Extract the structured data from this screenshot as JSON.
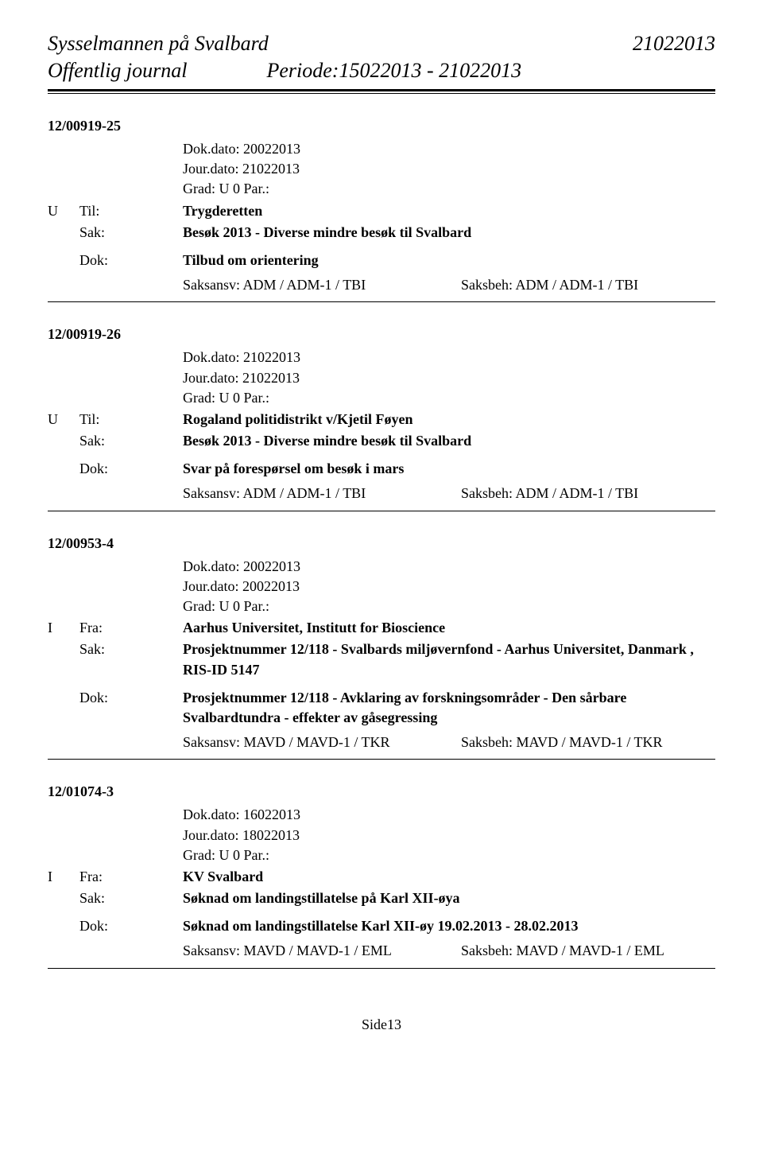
{
  "header": {
    "org": "Sysselmannen på Svalbard",
    "date": "21022013",
    "journal_label": "Offentlig journal",
    "period_label": "Periode:15022013 - 21022013"
  },
  "entries": [
    {
      "case_id": "12/00919-25",
      "dok_dato": "Dok.dato: 20022013",
      "jour_dato": "Jour.dato: 21022013",
      "grad": "Grad:  U 0    Par.:",
      "direction": "U",
      "party_label": "Til:",
      "party_value": "Trygderetten",
      "sak_label": "Sak:",
      "sak_value": "Besøk 2013 - Diverse mindre besøk til Svalbard",
      "dok_label": "Dok:",
      "dok_value": "Tilbud om orientering",
      "saksansv": "Saksansv:  ADM / ADM-1 / TBI",
      "saksbeh": "Saksbeh: ADM / ADM-1 / TBI"
    },
    {
      "case_id": "12/00919-26",
      "dok_dato": "Dok.dato: 21022013",
      "jour_dato": "Jour.dato: 21022013",
      "grad": "Grad:  U 0    Par.:",
      "direction": "U",
      "party_label": "Til:",
      "party_value": "Rogaland politidistrikt v/Kjetil Føyen",
      "sak_label": "Sak:",
      "sak_value": "Besøk 2013 - Diverse mindre besøk til Svalbard",
      "dok_label": "Dok:",
      "dok_value": "Svar på forespørsel om besøk i mars",
      "saksansv": "Saksansv:  ADM / ADM-1 / TBI",
      "saksbeh": "Saksbeh: ADM / ADM-1 / TBI"
    },
    {
      "case_id": "12/00953-4",
      "dok_dato": "Dok.dato: 20022013",
      "jour_dato": "Jour.dato: 20022013",
      "grad": "Grad:  U 0    Par.:",
      "direction": "I",
      "party_label": "Fra:",
      "party_value": "Aarhus Universitet, Institutt for Bioscience",
      "sak_label": "Sak:",
      "sak_value": "Prosjektnummer 12/118 - Svalbards miljøvernfond - Aarhus Universitet, Danmark , RIS-ID 5147",
      "dok_label": "Dok:",
      "dok_value": "Prosjektnummer 12/118 - Avklaring av forskningsområder -  Den sårbare Svalbardtundra - effekter av gåsegressing",
      "saksansv": "Saksansv:  MAVD / MAVD-1 / TKR",
      "saksbeh": "Saksbeh: MAVD / MAVD-1 / TKR"
    },
    {
      "case_id": "12/01074-3",
      "dok_dato": "Dok.dato: 16022013",
      "jour_dato": "Jour.dato: 18022013",
      "grad": "Grad:  U 0    Par.:",
      "direction": "I",
      "party_label": "Fra:",
      "party_value": "KV Svalbard",
      "sak_label": "Sak:",
      "sak_value": "Søknad om landingstillatelse på Karl XII-øya",
      "dok_label": "Dok:",
      "dok_value": "Søknad om landingstillatelse Karl XII-øy 19.02.2013 - 28.02.2013",
      "saksansv": "Saksansv:  MAVD / MAVD-1 / EML",
      "saksbeh": "Saksbeh: MAVD / MAVD-1 / EML"
    }
  ],
  "footer": {
    "page": "Side13"
  }
}
